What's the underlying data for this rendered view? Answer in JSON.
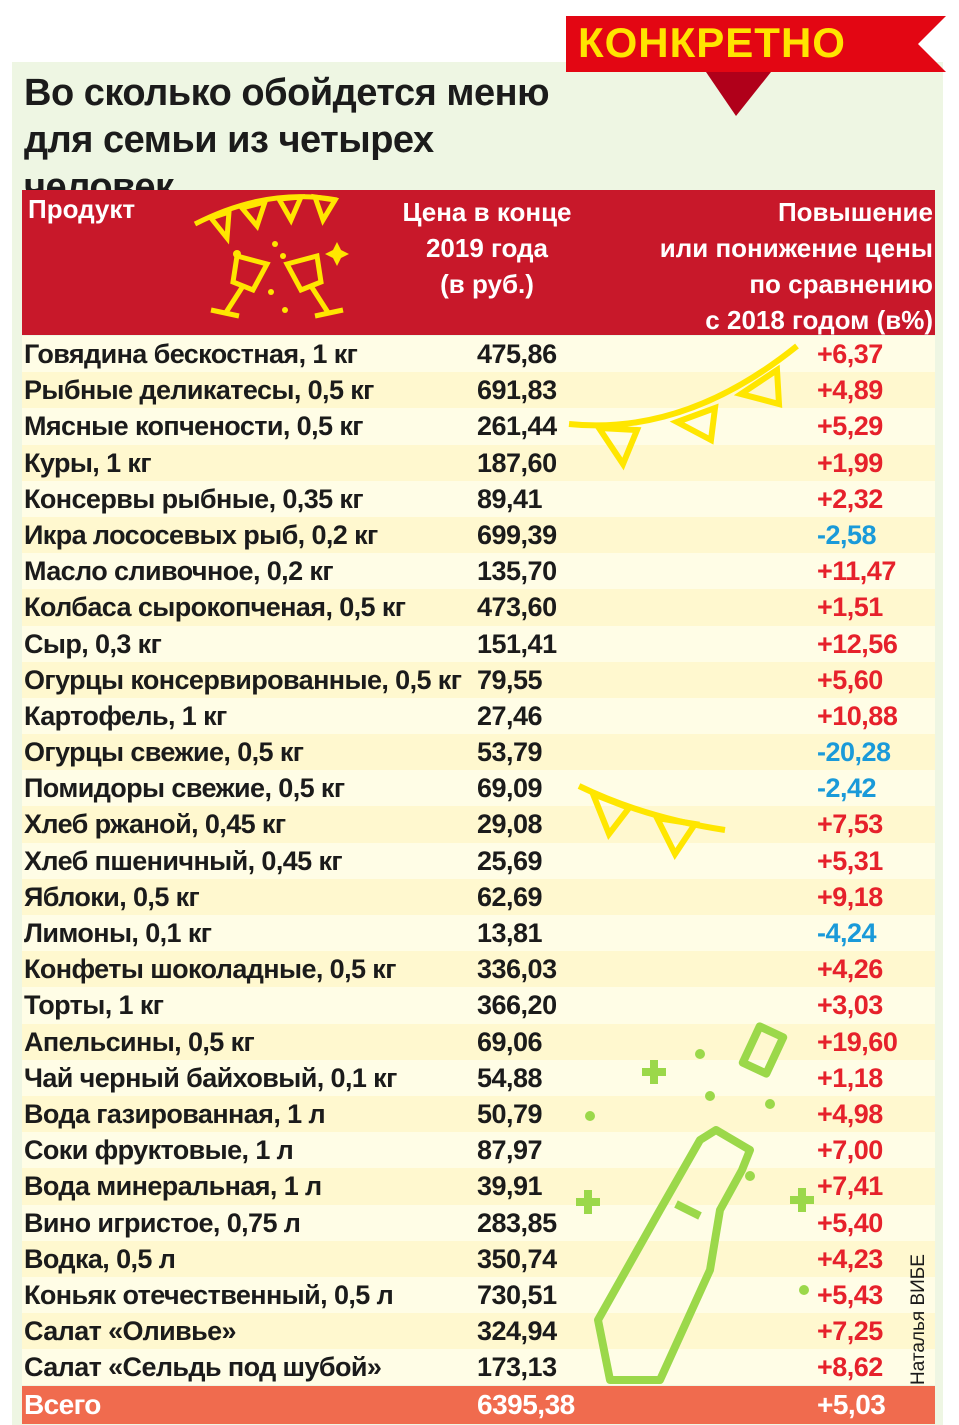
{
  "badge": {
    "label": "КОНКРЕТНО",
    "color": "#e30613",
    "text_color": "#ffe400"
  },
  "title": {
    "line1": "Во сколько обойдется меню",
    "line2": "для семьи из четырех человек"
  },
  "header": {
    "product": "Продукт",
    "price_lines": [
      "Цена в конце",
      "2019 года",
      "(в руб.)"
    ],
    "change_lines": [
      "Повышение",
      "или понижение цены",
      "по сравнению",
      "с 2018 годом (в%)"
    ],
    "color": "#c8182a"
  },
  "rows": [
    {
      "name": "Говядина бескостная, 1 кг",
      "price": "475,86",
      "change": "+6,37",
      "dir": "up"
    },
    {
      "name": "Рыбные деликатесы, 0,5 кг",
      "price": "691,83",
      "change": "+4,89",
      "dir": "up"
    },
    {
      "name": "Мясные копчености, 0,5 кг",
      "price": "261,44",
      "change": "+5,29",
      "dir": "up"
    },
    {
      "name": "Куры, 1 кг",
      "price": "187,60",
      "change": "+1,99",
      "dir": "up"
    },
    {
      "name": "Консервы рыбные, 0,35 кг",
      "price": "89,41",
      "change": "+2,32",
      "dir": "up"
    },
    {
      "name": "Икра лососевых рыб, 0,2 кг",
      "price": "699,39",
      "change": "-2,58",
      "dir": "down"
    },
    {
      "name": "Масло сливочное, 0,2 кг",
      "price": "135,70",
      "change": "+11,47",
      "dir": "up"
    },
    {
      "name": "Колбаса сырокопченая, 0,5 кг",
      "price": "473,60",
      "change": "+1,51",
      "dir": "up"
    },
    {
      "name": "Сыр, 0,3 кг",
      "price": "151,41",
      "change": "+12,56",
      "dir": "up"
    },
    {
      "name": "Огурцы консервированные, 0,5 кг",
      "price": "79,55",
      "change": "+5,60",
      "dir": "up"
    },
    {
      "name": "Картофель, 1 кг",
      "price": "27,46",
      "change": "+10,88",
      "dir": "up"
    },
    {
      "name": "Огурцы свежие, 0,5 кг",
      "price": "53,79",
      "change": "-20,28",
      "dir": "down"
    },
    {
      "name": "Помидоры свежие, 0,5 кг",
      "price": "69,09",
      "change": "-2,42",
      "dir": "down"
    },
    {
      "name": "Хлеб ржаной, 0,45 кг",
      "price": "29,08",
      "change": "+7,53",
      "dir": "up"
    },
    {
      "name": "Хлеб пшеничный, 0,45 кг",
      "price": "25,69",
      "change": "+5,31",
      "dir": "up"
    },
    {
      "name": "Яблоки, 0,5 кг",
      "price": "62,69",
      "change": "+9,18",
      "dir": "up"
    },
    {
      "name": "Лимоны, 0,1 кг",
      "price": "13,81",
      "change": "-4,24",
      "dir": "down"
    },
    {
      "name": "Конфеты шоколадные, 0,5 кг",
      "price": "336,03",
      "change": "+4,26",
      "dir": "up"
    },
    {
      "name": "Торты, 1 кг",
      "price": "366,20",
      "change": "+3,03",
      "dir": "up"
    },
    {
      "name": "Апельсины, 0,5 кг",
      "price": "69,06",
      "change": "+19,60",
      "dir": "up"
    },
    {
      "name": "Чай черный байховый, 0,1 кг",
      "price": "54,88",
      "change": "+1,18",
      "dir": "up"
    },
    {
      "name": "Вода газированная, 1 л",
      "price": "50,79",
      "change": "+4,98",
      "dir": "up"
    },
    {
      "name": "Соки фруктовые, 1 л",
      "price": "87,97",
      "change": "+7,00",
      "dir": "up"
    },
    {
      "name": "Вода минеральная, 1 л",
      "price": "39,91",
      "change": "+7,41",
      "dir": "up"
    },
    {
      "name": "Вино игристое, 0,75 л",
      "price": "283,85",
      "change": "+5,40",
      "dir": "up"
    },
    {
      "name": "Водка, 0,5 л",
      "price": "350,74",
      "change": "+4,23",
      "dir": "up"
    },
    {
      "name": "Коньяк отечественный, 0,5 л",
      "price": "730,51",
      "change": "+5,43",
      "dir": "up"
    },
    {
      "name": "Салат «Оливье»",
      "price": "324,94",
      "change": "+7,25",
      "dir": "up"
    },
    {
      "name": "Салат «Сельдь под шубой»",
      "price": "173,13",
      "change": "+8,62",
      "dir": "up"
    }
  ],
  "total": {
    "name": "Всего",
    "price": "6395,38",
    "change": "+5,03",
    "color": "#f06b4e"
  },
  "author": "Наталья ВИБЕ",
  "colors": {
    "increase": "#e6212b",
    "decrease": "#1a9ad9",
    "decor_yellow": "#ffe600",
    "decor_green": "#9bd84a"
  },
  "icons": [
    "flag-garland-icon",
    "champagne-glasses-icon",
    "champagne-bottle-icon",
    "sparkle-icon"
  ]
}
